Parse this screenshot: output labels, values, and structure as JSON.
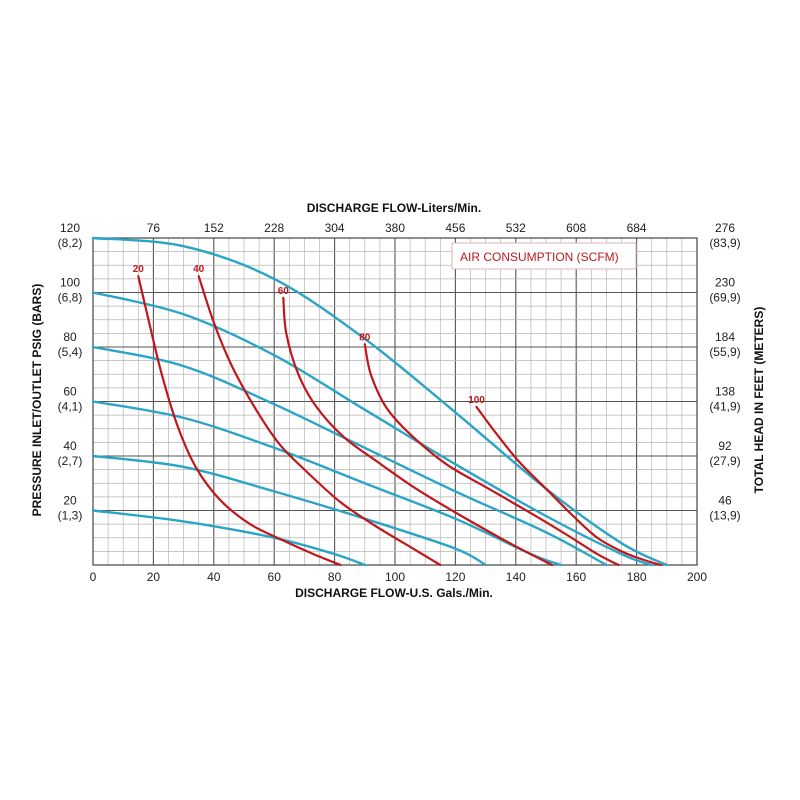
{
  "chart_data": {
    "type": "line",
    "x_bottom": {
      "label": "DISCHARGE FLOW-U.S. Gals./Min.",
      "range": [
        0,
        200
      ],
      "ticks": [
        "0",
        "20",
        "40",
        "60",
        "80",
        "100",
        "120",
        "140",
        "160",
        "180",
        "200"
      ]
    },
    "x_top": {
      "label": "DISCHARGE FLOW-Liters/Min.",
      "ticks": [
        "76",
        "152",
        "228",
        "304",
        "380",
        "456",
        "532",
        "608",
        "684"
      ]
    },
    "y_left": {
      "label": "PRESSURE INLET/OUTLET PSIG (BARS)",
      "range": [
        0,
        120
      ],
      "ticks": [
        {
          "value": 120,
          "psi": "120",
          "bar": "(8,2)"
        },
        {
          "value": 100,
          "psi": "100",
          "bar": "(6,8)"
        },
        {
          "value": 80,
          "psi": "80",
          "bar": "(5,4)"
        },
        {
          "value": 60,
          "psi": "60",
          "bar": "(4,1)"
        },
        {
          "value": 40,
          "psi": "40",
          "bar": "(2,7)"
        },
        {
          "value": 20,
          "psi": "20",
          "bar": "(1,3)"
        }
      ]
    },
    "y_right": {
      "label": "TOTAL HEAD IN FEET (METERS)",
      "ticks": [
        {
          "value": 120,
          "ft": "276",
          "m": "(83,9)"
        },
        {
          "value": 100,
          "ft": "230",
          "m": "(69,9)"
        },
        {
          "value": 80,
          "ft": "184",
          "m": "(55,9)"
        },
        {
          "value": 60,
          "ft": "138",
          "m": "(41,9)"
        },
        {
          "value": 40,
          "ft": "92",
          "m": "(27,9)"
        },
        {
          "value": 20,
          "ft": "46",
          "m": "(13,9)"
        }
      ]
    },
    "legend": {
      "text": "AIR CONSUMPTION (SCFM)",
      "placement": "top-right"
    },
    "grid": true,
    "pressure_curves": [
      {
        "x": [
          0,
          30,
          60,
          90,
          120,
          150,
          175,
          190
        ],
        "y": [
          120,
          117,
          105,
          83,
          56,
          28,
          8,
          0
        ]
      },
      {
        "x": [
          0,
          30,
          60,
          90,
          120,
          150,
          175,
          185
        ],
        "y": [
          100,
          92,
          77,
          57,
          37,
          18,
          4,
          0
        ]
      },
      {
        "x": [
          0,
          30,
          60,
          90,
          120,
          150,
          170
        ],
        "y": [
          80,
          73,
          59,
          43,
          27,
          12,
          0
        ]
      },
      {
        "x": [
          0,
          30,
          60,
          90,
          120,
          145,
          155
        ],
        "y": [
          60,
          54,
          43,
          30,
          17,
          4,
          0
        ]
      },
      {
        "x": [
          0,
          30,
          60,
          90,
          120,
          130
        ],
        "y": [
          40,
          36,
          27,
          17,
          6,
          0
        ]
      },
      {
        "x": [
          0,
          30,
          60,
          80,
          90
        ],
        "y": [
          20,
          16,
          10,
          4,
          0
        ]
      }
    ],
    "air_consumption_curves": [
      {
        "label": "20",
        "x": [
          15,
          19,
          23,
          28,
          34,
          42,
          52,
          63,
          73,
          82
        ],
        "y": [
          106,
          87,
          69,
          51,
          36,
          24,
          15,
          9,
          4,
          0
        ]
      },
      {
        "label": "40",
        "x": [
          35,
          40,
          46,
          54,
          62,
          71,
          82,
          94,
          106,
          115
        ],
        "y": [
          106,
          89,
          73,
          57,
          44,
          34,
          23,
          14,
          6,
          0
        ]
      },
      {
        "label": "60",
        "x": [
          63,
          64,
          68,
          74,
          83,
          94,
          107,
          122,
          138,
          152
        ],
        "y": [
          98,
          85,
          70,
          58,
          47,
          38,
          28,
          18,
          8,
          0
        ]
      },
      {
        "label": "80",
        "x": [
          90,
          92,
          97,
          105,
          117,
          131,
          145,
          157,
          167,
          174
        ],
        "y": [
          81,
          70,
          58,
          48,
          37,
          28,
          19,
          11,
          4,
          0
        ]
      },
      {
        "label": "100",
        "x": [
          127,
          133,
          141,
          150,
          159,
          167,
          175,
          182,
          188
        ],
        "y": [
          58,
          49,
          38,
          28,
          18,
          10,
          5,
          2,
          0
        ]
      }
    ]
  }
}
